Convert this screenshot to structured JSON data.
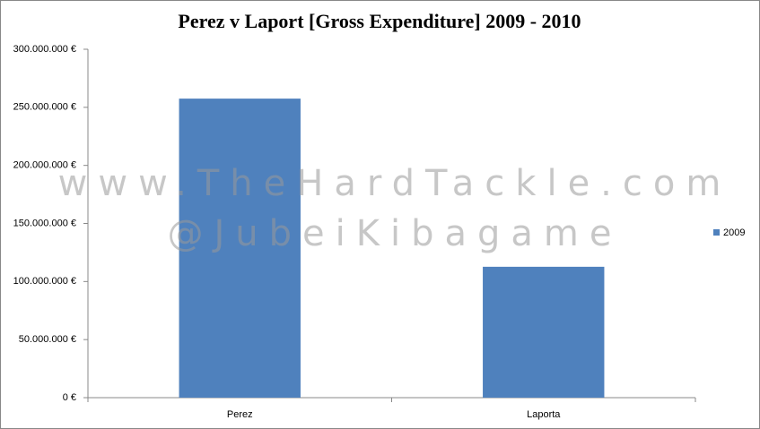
{
  "chart_data": {
    "type": "bar",
    "title": "Perez v Laport [Gross Expenditure] 2009 - 2010",
    "annotations": [
      "www.TheHardTackle.com",
      "@JubeiKibagame"
    ],
    "categories": [
      "Perez",
      "Laporta"
    ],
    "series": [
      {
        "name": "2009",
        "color": "#4f81bd",
        "values": [
          257500000,
          112700000
        ]
      }
    ],
    "ylim": [
      0,
      300000000
    ],
    "yticks": [
      {
        "value": 0,
        "label": "0 €"
      },
      {
        "value": 50000000,
        "label": "50.000.000 €"
      },
      {
        "value": 100000000,
        "label": "100.000.000 €"
      },
      {
        "value": 150000000,
        "label": "150.000.000 €"
      },
      {
        "value": 200000000,
        "label": "200.000.000 €"
      },
      {
        "value": 250000000,
        "label": "250.000.000 €"
      },
      {
        "value": 300000000,
        "label": "300.000.000 €"
      }
    ],
    "grid": false,
    "legend": "right"
  }
}
